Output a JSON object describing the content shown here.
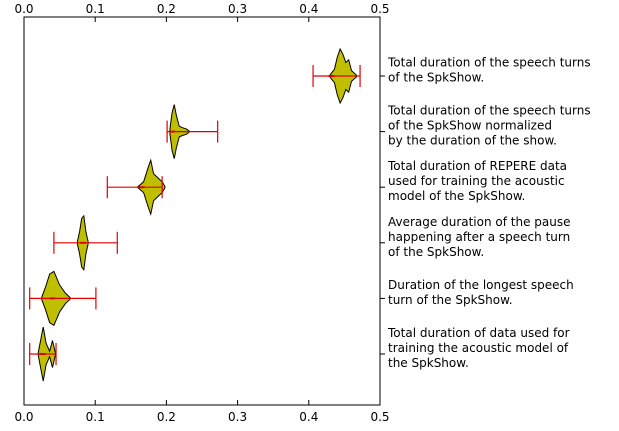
{
  "chart_data": {
    "type": "violin",
    "categories": [
      [
        "Total duration of the speech turns",
        "of the SpkShow."
      ],
      [
        "Total duration of the speech turns",
        "of the SpkShow normalized",
        "by the duration of the show."
      ],
      [
        "Total duration of REPERE data",
        "used for training the acoustic",
        "model of the SpkShow."
      ],
      [
        "Average duration of the pause",
        "happening after a speech turn",
        "of the SpkShow."
      ],
      [
        "Duration of the longest speech",
        "turn of the SpkShow."
      ],
      [
        "Total duration of data used for",
        "training the acoustic model of",
        "the SpkShow."
      ]
    ],
    "min": [
      0.406,
      0.201,
      0.117,
      0.042,
      0.008,
      0.008
    ],
    "max": [
      0.472,
      0.272,
      0.194,
      0.131,
      0.101,
      0.045
    ],
    "median": [
      0.432,
      0.208,
      0.165,
      0.083,
      0.04,
      0.026
    ],
    "density_x": [
      [
        0.43,
        0.436,
        0.44,
        0.444,
        0.448,
        0.452,
        0.456,
        0.46,
        0.467
      ],
      [
        0.205,
        0.208,
        0.211,
        0.214,
        0.218,
        0.222,
        0.228,
        0.232
      ],
      [
        0.16,
        0.168,
        0.174,
        0.178,
        0.182,
        0.188,
        0.194,
        0.198
      ],
      [
        0.075,
        0.078,
        0.081,
        0.084,
        0.087,
        0.09
      ],
      [
        0.025,
        0.03,
        0.036,
        0.042,
        0.05,
        0.058,
        0.065
      ],
      [
        0.02,
        0.024,
        0.027,
        0.031,
        0.036,
        0.04,
        0.044
      ]
    ],
    "density": [
      [
        0.05,
        0.25,
        0.7,
        1,
        0.8,
        0.5,
        0.6,
        0.2,
        0.03
      ],
      [
        0.1,
        0.7,
        1,
        0.6,
        0.2,
        0.15,
        0.1,
        0.02
      ],
      [
        0.02,
        0.2,
        0.7,
        1,
        0.5,
        0.35,
        0.2,
        0.02
      ],
      [
        0.05,
        0.4,
        0.9,
        1,
        0.4,
        0.05
      ],
      [
        0.05,
        0.4,
        0.9,
        1,
        0.5,
        0.2,
        0.02
      ],
      [
        0.05,
        0.6,
        1,
        0.4,
        0.1,
        0.5,
        0.05
      ]
    ],
    "color": "#bfbf00",
    "whisker_color": "#e00000",
    "xlim": [
      0,
      0.5
    ],
    "xticks": [
      {
        "value": 0,
        "label": "0.0"
      },
      0.1,
      0.2,
      0.3,
      0.4,
      0.5
    ]
  }
}
